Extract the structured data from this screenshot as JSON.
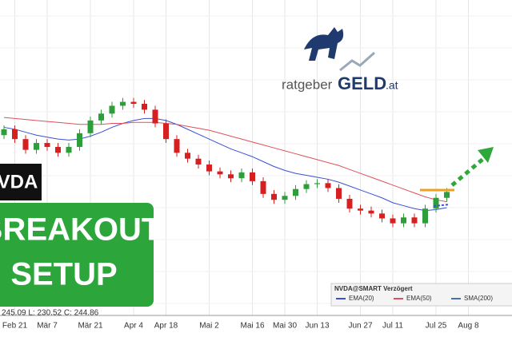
{
  "chart_data": {
    "type": "candlestick",
    "categories": [
      null,
      "Feb 21",
      null,
      null,
      "Mär 7",
      null,
      null,
      null,
      "Mär 21",
      null,
      null,
      null,
      "Apr 4",
      null,
      null,
      "Apr 18",
      null,
      null,
      null,
      "Mai 2",
      null,
      null,
      null,
      "Mai 16",
      null,
      null,
      "Mai 30",
      null,
      null,
      "Jun 13",
      null,
      null,
      null,
      "Jun 27",
      null,
      null,
      "Jul 11",
      null,
      null,
      null,
      "Jul 25",
      null,
      null,
      "Aug 8",
      null
    ],
    "open": [
      240,
      246,
      236,
      225,
      232,
      228,
      222,
      228,
      242,
      255,
      262,
      270,
      274,
      272,
      266,
      252,
      236,
      222,
      216,
      210,
      203,
      200,
      196,
      202,
      193,
      180,
      174,
      178,
      185,
      190,
      191,
      186,
      175,
      165,
      163,
      160,
      155,
      150,
      156,
      150,
      165,
      176,
      null,
      null,
      null
    ],
    "high": [
      250,
      250,
      240,
      236,
      236,
      232,
      232,
      246,
      259,
      266,
      274,
      278,
      278,
      276,
      270,
      256,
      240,
      226,
      220,
      214,
      207,
      204,
      206,
      206,
      197,
      184,
      182,
      189,
      194,
      195,
      195,
      190,
      179,
      169,
      167,
      164,
      159,
      160,
      160,
      169,
      180,
      186,
      null,
      null,
      null
    ],
    "low": [
      236,
      232,
      221,
      221,
      224,
      218,
      218,
      224,
      238,
      251,
      258,
      266,
      268,
      262,
      248,
      232,
      218,
      212,
      206,
      199,
      196,
      192,
      192,
      189,
      176,
      170,
      170,
      174,
      181,
      186,
      182,
      171,
      161,
      159,
      156,
      151,
      146,
      146,
      146,
      146,
      161,
      172,
      null,
      null,
      null
    ],
    "close": [
      246,
      236,
      225,
      232,
      228,
      222,
      228,
      242,
      255,
      262,
      270,
      274,
      272,
      266,
      252,
      236,
      222,
      216,
      210,
      203,
      200,
      196,
      202,
      193,
      180,
      174,
      178,
      185,
      190,
      191,
      186,
      175,
      165,
      163,
      160,
      155,
      150,
      156,
      150,
      165,
      176,
      182,
      null,
      null,
      null
    ],
    "up_color": "#2e9e3a",
    "down_color": "#d62020",
    "series": [
      {
        "name": "EMA(20)",
        "color": "#3b4fd6",
        "values": [
          248,
          246,
          243,
          240,
          238,
          236,
          235,
          236,
          239,
          243,
          248,
          252,
          255,
          257,
          257,
          255,
          251,
          246,
          241,
          236,
          231,
          226,
          222,
          218,
          213,
          208,
          204,
          201,
          199,
          197,
          195,
          192,
          188,
          184,
          180,
          176,
          171,
          168,
          165,
          163,
          164,
          166,
          null,
          null,
          null
        ]
      },
      {
        "name": "EMA(50)",
        "color": "#e0505a",
        "values": [
          258,
          257,
          256,
          255,
          254,
          253,
          252,
          251,
          251,
          251,
          252,
          252,
          253,
          253,
          253,
          252,
          251,
          249,
          247,
          245,
          242,
          239,
          236,
          233,
          230,
          227,
          224,
          221,
          218,
          215,
          212,
          209,
          205,
          201,
          197,
          193,
          189,
          185,
          181,
          177,
          174,
          172,
          null,
          null,
          null
        ]
      }
    ],
    "extra_legend_entry": {
      "name": "SMA(200)",
      "color": "#4a6fb5"
    },
    "legend_title": "NVDA@SMART Verzögert",
    "ylim": [
      60,
      378
    ],
    "grid": true
  },
  "logo": {
    "part1": "ratgeber",
    "part2": "GELD",
    "part3": ".at"
  },
  "overlay": {
    "ticker": "VDA",
    "line1": "BREAKOUT",
    "line2": "SETUP",
    "quote": "245.09 L: 230.52 C: 244.86"
  }
}
